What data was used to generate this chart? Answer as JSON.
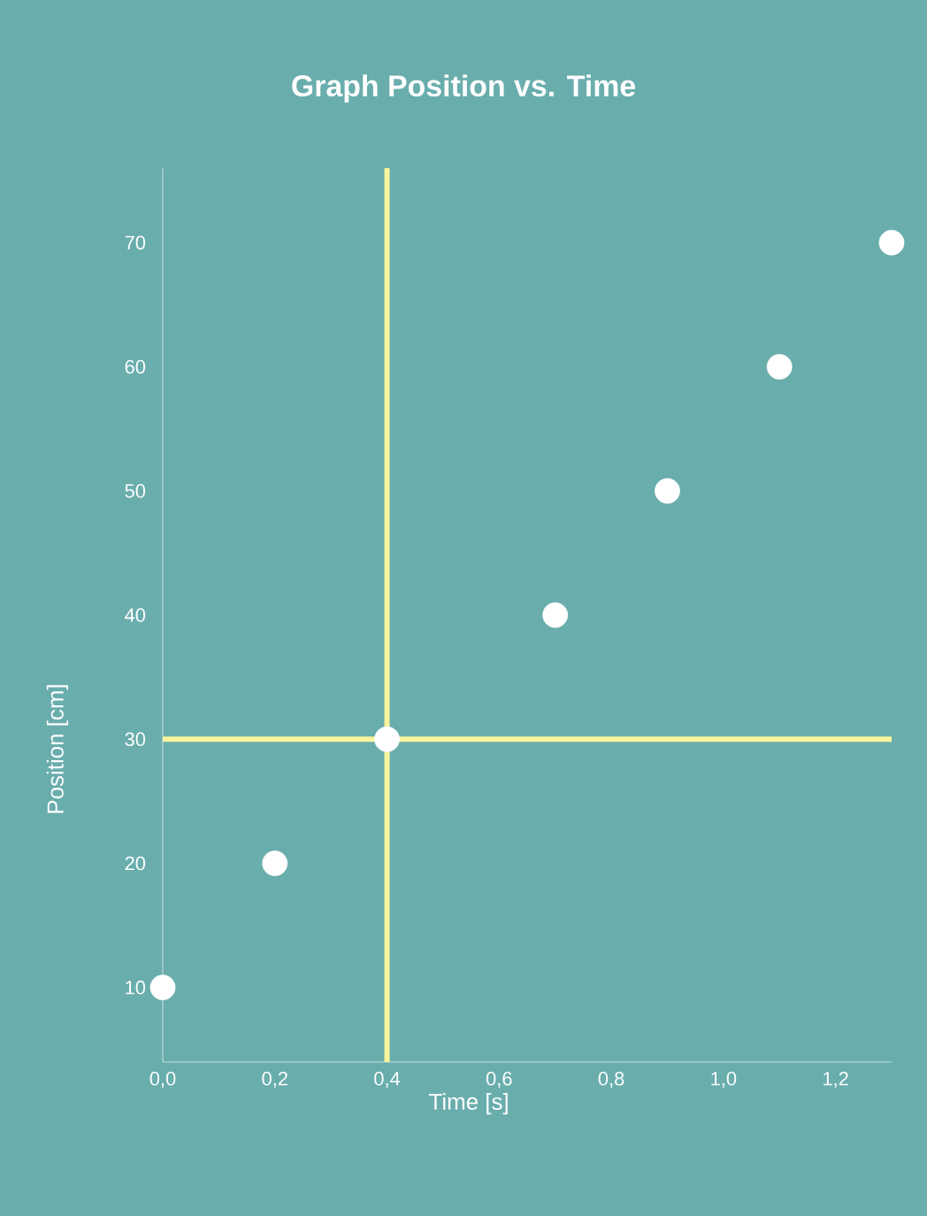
{
  "chart_data": {
    "type": "scatter",
    "title": "Graph Position vs. Time",
    "xlabel": "Time [s]",
    "ylabel": "Position [cm]",
    "x": [
      0.0,
      0.2,
      0.4,
      0.7,
      0.9,
      1.1,
      1.3
    ],
    "series": [
      {
        "color": "#ffffff",
        "values": [
          10,
          20,
          30,
          40,
          50,
          60,
          70
        ]
      }
    ],
    "xlim": [
      0,
      1.3
    ],
    "ylim": [
      4,
      76
    ],
    "xticks": [
      {
        "value": 0,
        "label": "0,0"
      },
      {
        "value": 0.2,
        "label": "0,2"
      },
      {
        "value": 0.4,
        "label": "0,4"
      },
      {
        "value": 0.6,
        "label": "0,6"
      },
      {
        "value": 0.8,
        "label": "0,8"
      },
      {
        "value": 1.0,
        "label": "1,0"
      },
      {
        "value": 1.2,
        "label": "1,2"
      }
    ],
    "yticks": [
      10,
      20,
      30,
      40,
      50,
      60,
      70
    ],
    "ref_lines": [
      {
        "axis": "x",
        "value": 0.4,
        "color": "#f8f59c"
      },
      {
        "axis": "y",
        "value": 30,
        "color": "#f8f59c"
      }
    ],
    "marker": "circle",
    "grid": false
  }
}
